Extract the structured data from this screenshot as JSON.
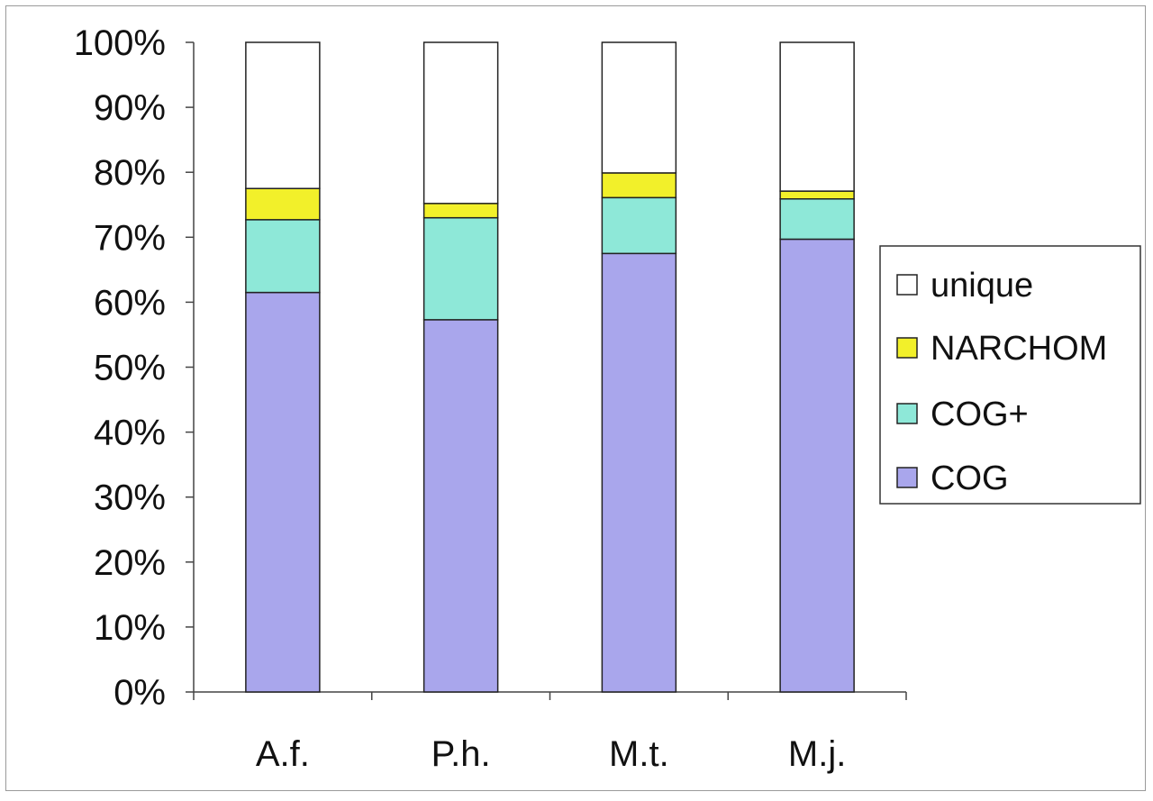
{
  "chart_data": {
    "type": "bar",
    "stacked": true,
    "percent": true,
    "title": "",
    "xlabel": "",
    "ylabel": "",
    "ylim": [
      0,
      100
    ],
    "yticks": [
      "0%",
      "10%",
      "20%",
      "30%",
      "40%",
      "50%",
      "60%",
      "70%",
      "80%",
      "90%",
      "100%"
    ],
    "categories": [
      "A.f.",
      "P.h.",
      "M.t.",
      "M.j."
    ],
    "series": [
      {
        "name": "COG",
        "color": "#a9a6ec",
        "values": [
          61.5,
          57.3,
          67.5,
          69.7
        ]
      },
      {
        "name": "COG+",
        "color": "#8ee8d8",
        "values": [
          11.2,
          15.7,
          8.6,
          6.2
        ]
      },
      {
        "name": "NARCHOM",
        "color": "#f2f02a",
        "values": [
          4.8,
          2.2,
          3.8,
          1.2
        ]
      },
      {
        "name": "unique",
        "color": "#ffffff",
        "values": [
          22.5,
          24.8,
          20.1,
          22.9
        ]
      }
    ],
    "legend": {
      "position": "right",
      "order": [
        "unique",
        "NARCHOM",
        "COG+",
        "COG"
      ]
    },
    "grid": false
  }
}
